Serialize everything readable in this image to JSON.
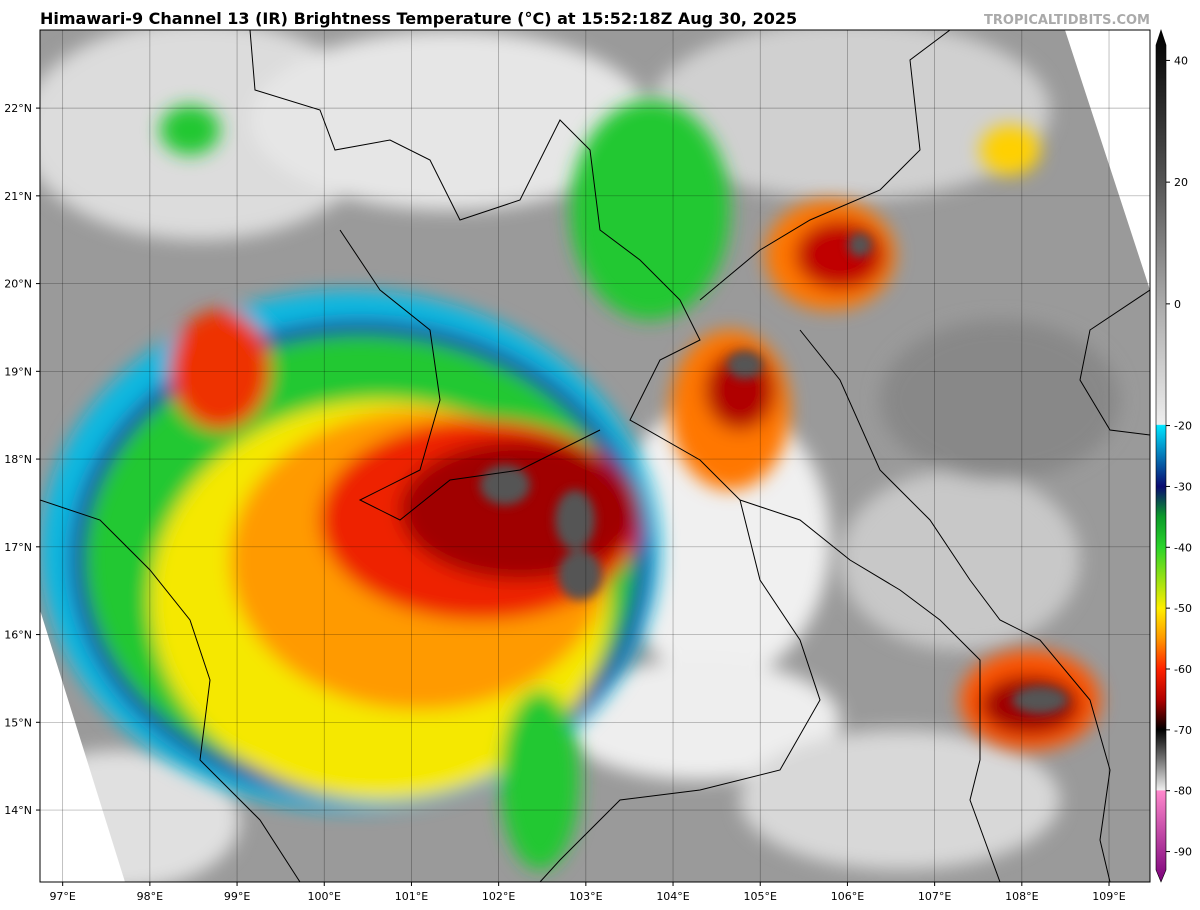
{
  "header": {
    "title": "Himawari-9 Channel 13 (IR) Brightness Temperature (°C) at 15:52:18Z Aug 30, 2025",
    "credit": "TROPICALTIDBITS.COM"
  },
  "map": {
    "lon_range": [
      96.74,
      109.47
    ],
    "lat_range": [
      13.18,
      22.89
    ],
    "lon_ticks": [
      {
        "value": 97,
        "label": "97°E"
      },
      {
        "value": 98,
        "label": "98°E"
      },
      {
        "value": 99,
        "label": "99°E"
      },
      {
        "value": 100,
        "label": "100°E"
      },
      {
        "value": 101,
        "label": "101°E"
      },
      {
        "value": 102,
        "label": "102°E"
      },
      {
        "value": 103,
        "label": "103°E"
      },
      {
        "value": 104,
        "label": "104°E"
      },
      {
        "value": 105,
        "label": "105°E"
      },
      {
        "value": 106,
        "label": "106°E"
      },
      {
        "value": 107,
        "label": "107°E"
      },
      {
        "value": 108,
        "label": "108°E"
      },
      {
        "value": 109,
        "label": "109°E"
      }
    ],
    "lat_ticks": [
      {
        "value": 22,
        "label": "22°N"
      },
      {
        "value": 21,
        "label": "21°N"
      },
      {
        "value": 20,
        "label": "20°N"
      },
      {
        "value": 19,
        "label": "19°N"
      },
      {
        "value": 18,
        "label": "18°N"
      },
      {
        "value": 17,
        "label": "17°N"
      },
      {
        "value": 16,
        "label": "16°N"
      },
      {
        "value": 15,
        "label": "15°N"
      },
      {
        "value": 14,
        "label": "14°N"
      }
    ]
  },
  "colorbar": {
    "range": [
      -95,
      45
    ],
    "ticks": [
      40,
      20,
      0,
      -20,
      -30,
      -40,
      -50,
      -60,
      -70,
      -80,
      -90
    ]
  }
}
